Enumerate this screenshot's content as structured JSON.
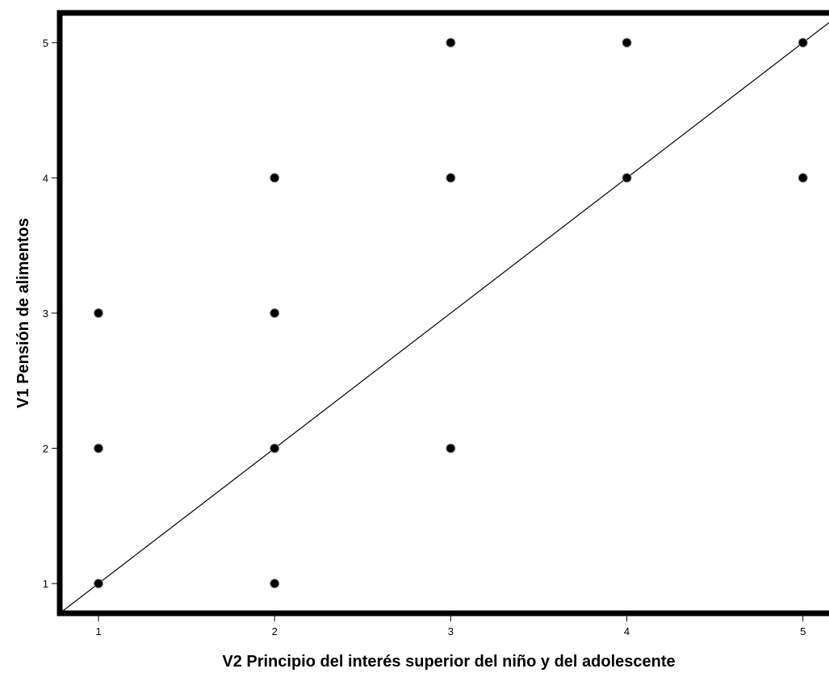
{
  "chart_data": {
    "type": "scatter",
    "xlabel": "V2 Principio del interés superior del niño y del adolescente",
    "ylabel": "V1 Pensión de alimentos",
    "xlim": [
      0.78,
      5.18
    ],
    "ylim": [
      0.78,
      5.22
    ],
    "xticks": [
      1,
      2,
      3,
      4,
      5
    ],
    "yticks": [
      1,
      2,
      3,
      4,
      5
    ],
    "grid": false,
    "points": [
      {
        "x": 1,
        "y": 1
      },
      {
        "x": 1,
        "y": 2
      },
      {
        "x": 1,
        "y": 3
      },
      {
        "x": 2,
        "y": 1
      },
      {
        "x": 2,
        "y": 2
      },
      {
        "x": 2,
        "y": 3
      },
      {
        "x": 2,
        "y": 4
      },
      {
        "x": 3,
        "y": 2
      },
      {
        "x": 3,
        "y": 4
      },
      {
        "x": 3,
        "y": 5
      },
      {
        "x": 4,
        "y": 4
      },
      {
        "x": 4,
        "y": 5
      },
      {
        "x": 5,
        "y": 4
      },
      {
        "x": 5,
        "y": 5
      }
    ],
    "reference_line": {
      "slope": 1,
      "intercept": 0
    },
    "colors": {
      "point": "#000000",
      "line": "#000000",
      "frame": "#000000"
    }
  }
}
